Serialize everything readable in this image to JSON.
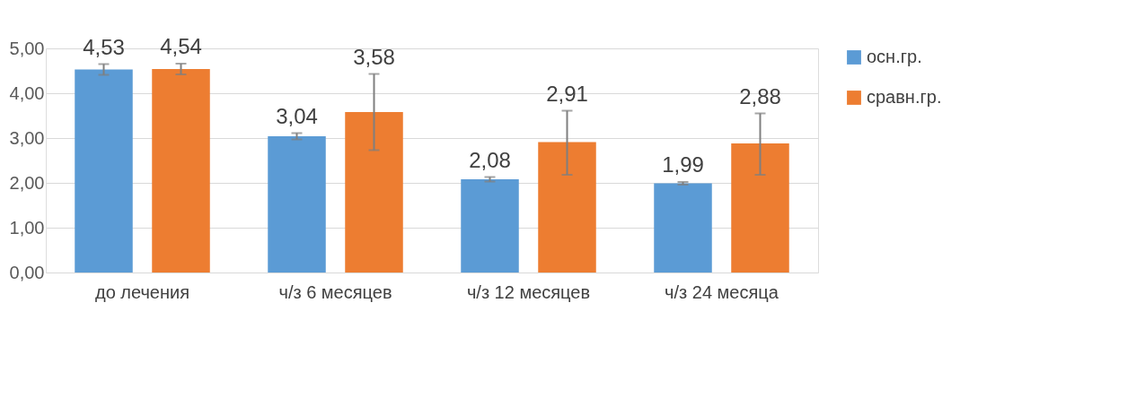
{
  "chart_data": {
    "type": "bar",
    "categories": [
      "до лечения",
      "ч/з 6 месяцев",
      "ч/з 12 месяцев",
      "ч/з 24 месяца"
    ],
    "series": [
      {
        "name": "осн.гр.",
        "color": "#5b9bd5",
        "values": [
          4.53,
          3.04,
          2.08,
          1.99
        ],
        "errors": [
          0.12,
          0.07,
          0.05,
          0.03
        ],
        "value_labels": [
          "4,53",
          "3,04",
          "2,08",
          "1,99"
        ]
      },
      {
        "name": "сравн.гр.",
        "color": "#ed7d31",
        "values": [
          4.54,
          3.58,
          2.91,
          2.88
        ],
        "errors": [
          0.12,
          0.85,
          [
            2.18,
            3.61
          ],
          [
            2.18,
            3.55
          ]
        ],
        "value_labels": [
          "4,54",
          "3,58",
          "2,91",
          "2,88"
        ]
      }
    ],
    "ylim": [
      0,
      5
    ],
    "yticks": [
      {
        "value": 0,
        "label": "0,00"
      },
      {
        "value": 1,
        "label": "1,00"
      },
      {
        "value": 2,
        "label": "2,00"
      },
      {
        "value": 3,
        "label": "3,00"
      },
      {
        "value": 4,
        "label": "4,00"
      },
      {
        "value": 5,
        "label": "5,00"
      }
    ],
    "grid": "y",
    "legend": "right"
  }
}
